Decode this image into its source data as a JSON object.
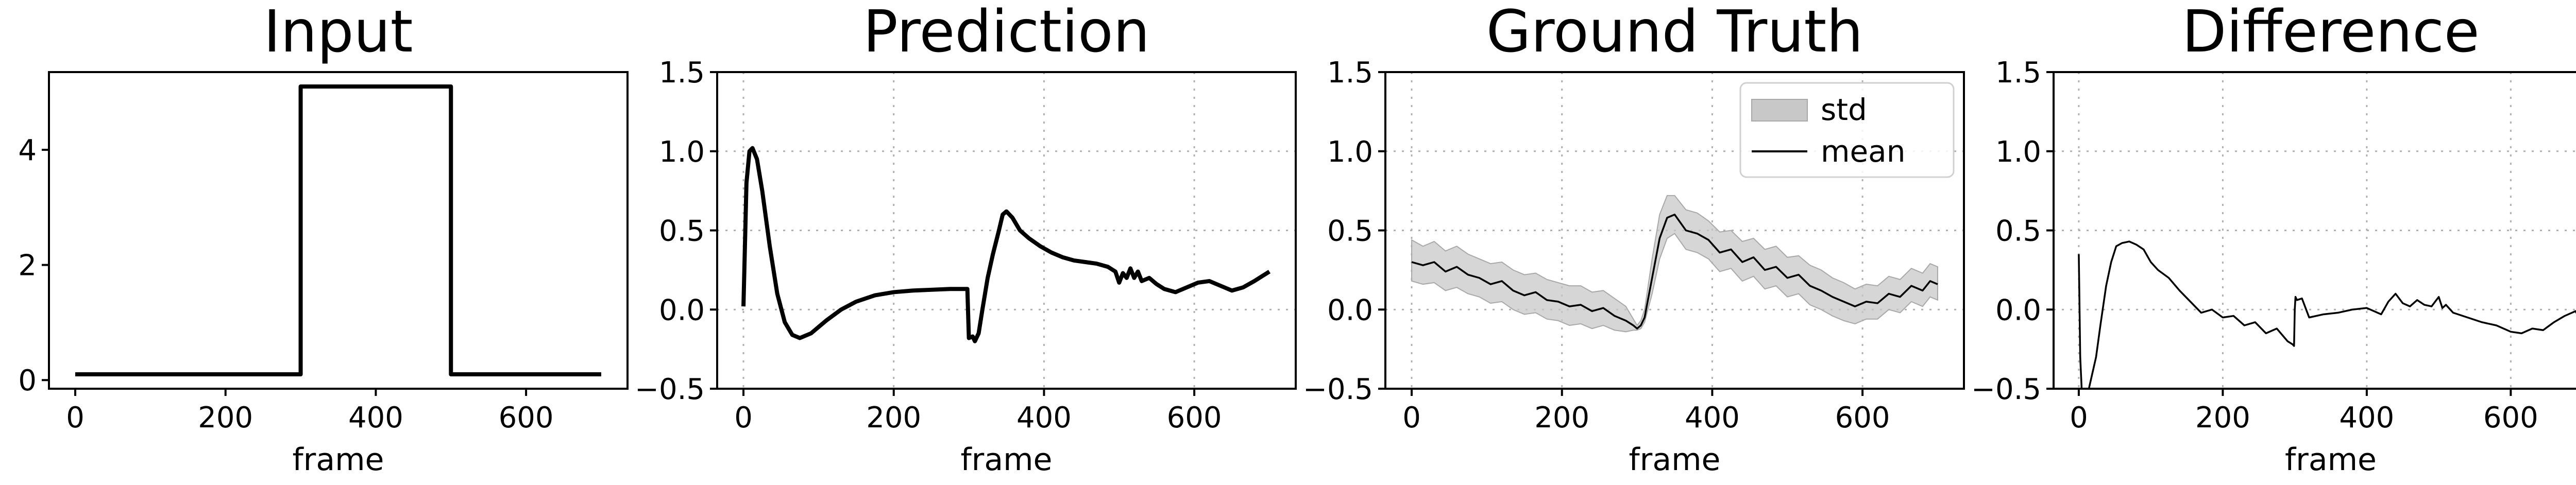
{
  "chart_data": [
    {
      "type": "line",
      "title": "Input",
      "xlabel": "frame",
      "ylabel": "",
      "xlim": [
        -35,
        735
      ],
      "ylim": [
        -0.15,
        5.35
      ],
      "xticks": [
        0,
        200,
        400,
        600
      ],
      "yticks": [
        0,
        2,
        4
      ],
      "grid": false,
      "series": [
        {
          "x": [
            0,
            300,
            300,
            500,
            500,
            700
          ],
          "y": [
            0.1,
            0.1,
            5.1,
            5.1,
            0.1,
            0.1
          ],
          "color": "#000000"
        }
      ]
    },
    {
      "type": "line",
      "title": "Prediction",
      "xlabel": "frame",
      "ylabel": "",
      "xlim": [
        -35,
        735
      ],
      "ylim": [
        -0.5,
        1.5
      ],
      "xticks": [
        0,
        200,
        400,
        600
      ],
      "yticks": [
        -0.5,
        0.0,
        0.5,
        1.0,
        1.5
      ],
      "ytick_labels": [
        "−0.5",
        "0.0",
        "0.5",
        "1.0",
        "1.5"
      ],
      "grid": true,
      "series": [
        {
          "x": [
            0,
            4,
            8,
            12,
            18,
            25,
            35,
            45,
            55,
            65,
            75,
            90,
            110,
            130,
            150,
            175,
            200,
            225,
            250,
            275,
            298,
            300,
            305,
            308,
            313,
            318,
            325,
            332,
            340,
            345,
            350,
            358,
            368,
            380,
            395,
            410,
            425,
            440,
            455,
            470,
            485,
            495,
            500,
            505,
            510,
            515,
            520,
            525,
            530,
            540,
            550,
            560,
            575,
            590,
            605,
            620,
            635,
            650,
            665,
            680,
            690,
            700
          ],
          "y": [
            0.02,
            0.8,
            1.0,
            1.02,
            0.95,
            0.75,
            0.4,
            0.1,
            -0.08,
            -0.16,
            -0.18,
            -0.15,
            -0.07,
            0.0,
            0.05,
            0.09,
            0.11,
            0.12,
            0.125,
            0.13,
            0.13,
            -0.18,
            -0.17,
            -0.2,
            -0.15,
            0.0,
            0.2,
            0.35,
            0.5,
            0.6,
            0.62,
            0.58,
            0.5,
            0.45,
            0.4,
            0.36,
            0.33,
            0.31,
            0.3,
            0.29,
            0.27,
            0.24,
            0.17,
            0.23,
            0.2,
            0.26,
            0.2,
            0.24,
            0.18,
            0.2,
            0.16,
            0.13,
            0.11,
            0.14,
            0.17,
            0.18,
            0.15,
            0.12,
            0.14,
            0.18,
            0.21,
            0.24
          ],
          "color": "#000000"
        }
      ]
    },
    {
      "type": "line",
      "title": "Ground Truth",
      "xlabel": "frame",
      "ylabel": "",
      "xlim": [
        -35,
        735
      ],
      "ylim": [
        -0.5,
        1.5
      ],
      "xticks": [
        0,
        200,
        400,
        600
      ],
      "yticks": [
        -0.5,
        0.0,
        0.5,
        1.0,
        1.5
      ],
      "ytick_labels": [
        "−0.5",
        "0.0",
        "0.5",
        "1.0",
        "1.5"
      ],
      "grid": true,
      "legend": {
        "location": "upper right",
        "entries": [
          "std",
          "mean"
        ]
      },
      "series": [
        {
          "name": "mean",
          "x": [
            0,
            15,
            30,
            45,
            60,
            75,
            90,
            105,
            120,
            135,
            150,
            165,
            180,
            195,
            210,
            225,
            240,
            255,
            270,
            285,
            295,
            300,
            305,
            310,
            320,
            330,
            340,
            350,
            365,
            380,
            395,
            410,
            425,
            440,
            455,
            470,
            485,
            500,
            515,
            530,
            545,
            560,
            575,
            590,
            605,
            620,
            635,
            650,
            665,
            680,
            690,
            700
          ],
          "y": [
            0.3,
            0.28,
            0.3,
            0.24,
            0.27,
            0.22,
            0.2,
            0.16,
            0.18,
            0.12,
            0.09,
            0.11,
            0.06,
            0.05,
            0.02,
            0.03,
            -0.01,
            0.01,
            -0.04,
            -0.07,
            -0.1,
            -0.12,
            -0.1,
            -0.05,
            0.2,
            0.45,
            0.58,
            0.6,
            0.5,
            0.48,
            0.44,
            0.36,
            0.38,
            0.3,
            0.33,
            0.25,
            0.27,
            0.2,
            0.22,
            0.15,
            0.12,
            0.08,
            0.05,
            0.02,
            0.05,
            0.04,
            0.1,
            0.08,
            0.15,
            0.12,
            0.18,
            0.16
          ],
          "color": "#000000"
        },
        {
          "name": "std",
          "x": [
            0,
            15,
            30,
            45,
            60,
            75,
            90,
            105,
            120,
            135,
            150,
            165,
            180,
            195,
            210,
            225,
            240,
            255,
            270,
            285,
            295,
            300,
            305,
            310,
            320,
            330,
            340,
            350,
            365,
            380,
            395,
            410,
            425,
            440,
            455,
            470,
            485,
            500,
            515,
            530,
            545,
            560,
            575,
            590,
            605,
            620,
            635,
            650,
            665,
            680,
            690,
            700
          ],
          "lower": [
            0.18,
            0.16,
            0.17,
            0.12,
            0.14,
            0.1,
            0.08,
            0.04,
            0.05,
            0.0,
            -0.03,
            -0.02,
            -0.06,
            -0.07,
            -0.1,
            -0.09,
            -0.12,
            -0.1,
            -0.13,
            -0.14,
            -0.13,
            -0.13,
            -0.12,
            -0.08,
            0.1,
            0.32,
            0.45,
            0.48,
            0.38,
            0.36,
            0.32,
            0.24,
            0.26,
            0.18,
            0.21,
            0.13,
            0.15,
            0.08,
            0.1,
            0.03,
            0.0,
            -0.04,
            -0.07,
            -0.09,
            -0.06,
            -0.06,
            0.0,
            -0.02,
            0.05,
            0.02,
            0.08,
            0.06
          ],
          "upper": [
            0.44,
            0.4,
            0.43,
            0.37,
            0.4,
            0.35,
            0.32,
            0.29,
            0.3,
            0.25,
            0.22,
            0.23,
            0.19,
            0.17,
            0.15,
            0.15,
            0.11,
            0.12,
            0.07,
            0.02,
            -0.06,
            -0.1,
            -0.07,
            0.0,
            0.32,
            0.6,
            0.72,
            0.72,
            0.63,
            0.61,
            0.56,
            0.49,
            0.5,
            0.43,
            0.45,
            0.38,
            0.4,
            0.33,
            0.34,
            0.28,
            0.25,
            0.2,
            0.17,
            0.13,
            0.16,
            0.15,
            0.21,
            0.19,
            0.26,
            0.23,
            0.29,
            0.27
          ],
          "color": "#c8c8c8"
        }
      ]
    },
    {
      "type": "line",
      "title": "Difference",
      "xlabel": "frame",
      "ylabel": "",
      "xlim": [
        -35,
        735
      ],
      "ylim": [
        -0.5,
        1.5
      ],
      "xticks": [
        0,
        200,
        400,
        600
      ],
      "yticks": [
        -0.5,
        0.0,
        0.5,
        1.0,
        1.5
      ],
      "ytick_labels": [
        "−0.5",
        "0.0",
        "0.5",
        "1.0",
        "1.5"
      ],
      "grid": true,
      "series": [
        {
          "x": [
            0,
            2,
            4,
            6,
            8,
            10,
            14,
            18,
            24,
            30,
            38,
            45,
            52,
            60,
            70,
            80,
            90,
            100,
            110,
            125,
            140,
            155,
            170,
            185,
            200,
            215,
            230,
            245,
            260,
            275,
            290,
            297,
            299,
            300,
            301,
            303,
            310,
            320,
            340,
            360,
            380,
            400,
            420,
            430,
            440,
            450,
            460,
            470,
            480,
            490,
            500,
            505,
            510,
            520,
            540,
            560,
            580,
            600,
            615,
            630,
            645,
            660,
            675,
            690,
            700
          ],
          "y": [
            0.35,
            -0.3,
            -0.5,
            -0.6,
            -0.65,
            -0.6,
            -0.5,
            -0.42,
            -0.3,
            -0.1,
            0.15,
            0.3,
            0.4,
            0.42,
            0.43,
            0.41,
            0.38,
            0.3,
            0.25,
            0.2,
            0.12,
            0.05,
            -0.02,
            0.0,
            -0.05,
            -0.04,
            -0.1,
            -0.08,
            -0.15,
            -0.12,
            -0.2,
            -0.22,
            -0.23,
            0.0,
            0.08,
            0.06,
            0.07,
            -0.05,
            -0.03,
            -0.02,
            0.0,
            0.01,
            -0.03,
            0.05,
            0.1,
            0.04,
            0.02,
            0.06,
            0.03,
            0.02,
            0.08,
            0.01,
            0.03,
            -0.02,
            -0.05,
            -0.08,
            -0.1,
            -0.14,
            -0.15,
            -0.12,
            -0.13,
            -0.08,
            -0.04,
            -0.01,
            -0.09
          ],
          "color": "#000000"
        }
      ]
    }
  ]
}
